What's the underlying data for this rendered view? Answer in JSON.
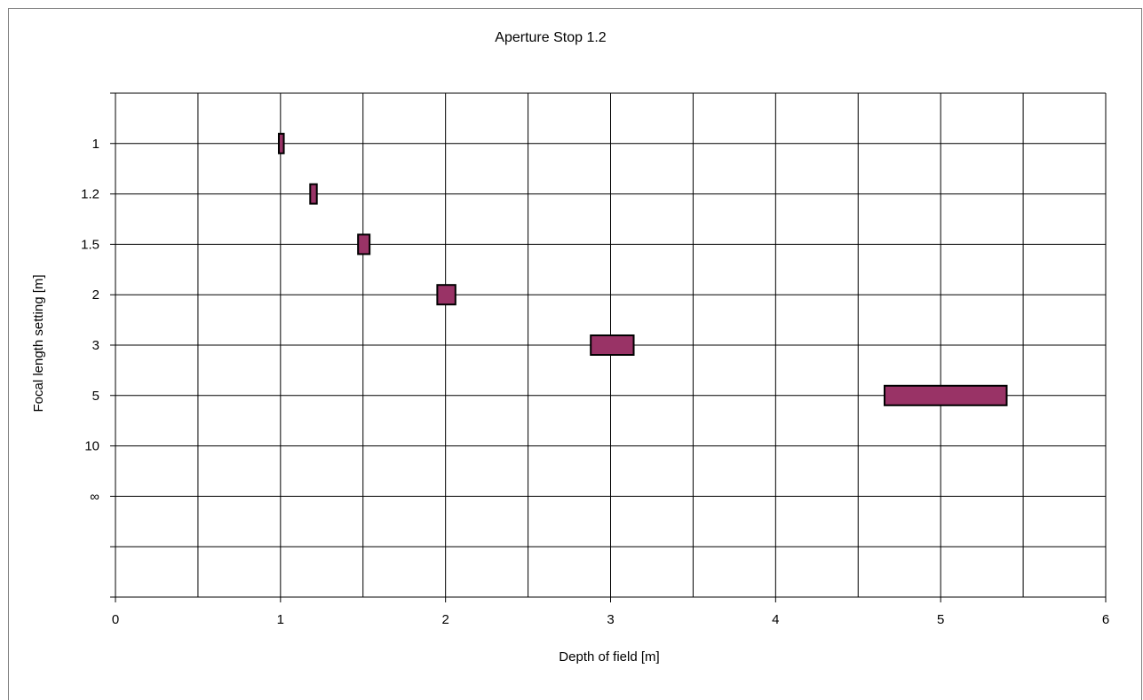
{
  "chart_data": {
    "type": "bar",
    "title": "Aperture Stop 1.2",
    "xlabel": "Depth of field [m]",
    "ylabel": "Focal length setting [m]",
    "xlim": [
      0,
      6
    ],
    "x_ticks": [
      "0",
      "1",
      "2",
      "3",
      "4",
      "5",
      "6"
    ],
    "x_minor_gridlines": [
      0.5,
      1.5,
      2.5,
      3.5,
      4.5,
      5.5
    ],
    "grid": true,
    "legend": "none",
    "categories": [
      "1",
      "1.2",
      "1.5",
      "2",
      "3",
      "5",
      "10",
      "∞"
    ],
    "bar_color": "#993366",
    "series": [
      {
        "values": [
          {
            "category": "1",
            "start": 0.99,
            "end": 1.02
          },
          {
            "category": "1.2",
            "start": 1.18,
            "end": 1.22
          },
          {
            "category": "1.5",
            "start": 1.47,
            "end": 1.54
          },
          {
            "category": "2",
            "start": 1.95,
            "end": 2.06
          },
          {
            "category": "3",
            "start": 2.88,
            "end": 3.14
          },
          {
            "category": "5",
            "start": 4.66,
            "end": 5.4
          },
          {
            "category": "10",
            "start": null,
            "end": null
          },
          {
            "category": "∞",
            "start": null,
            "end": null
          }
        ]
      }
    ]
  }
}
